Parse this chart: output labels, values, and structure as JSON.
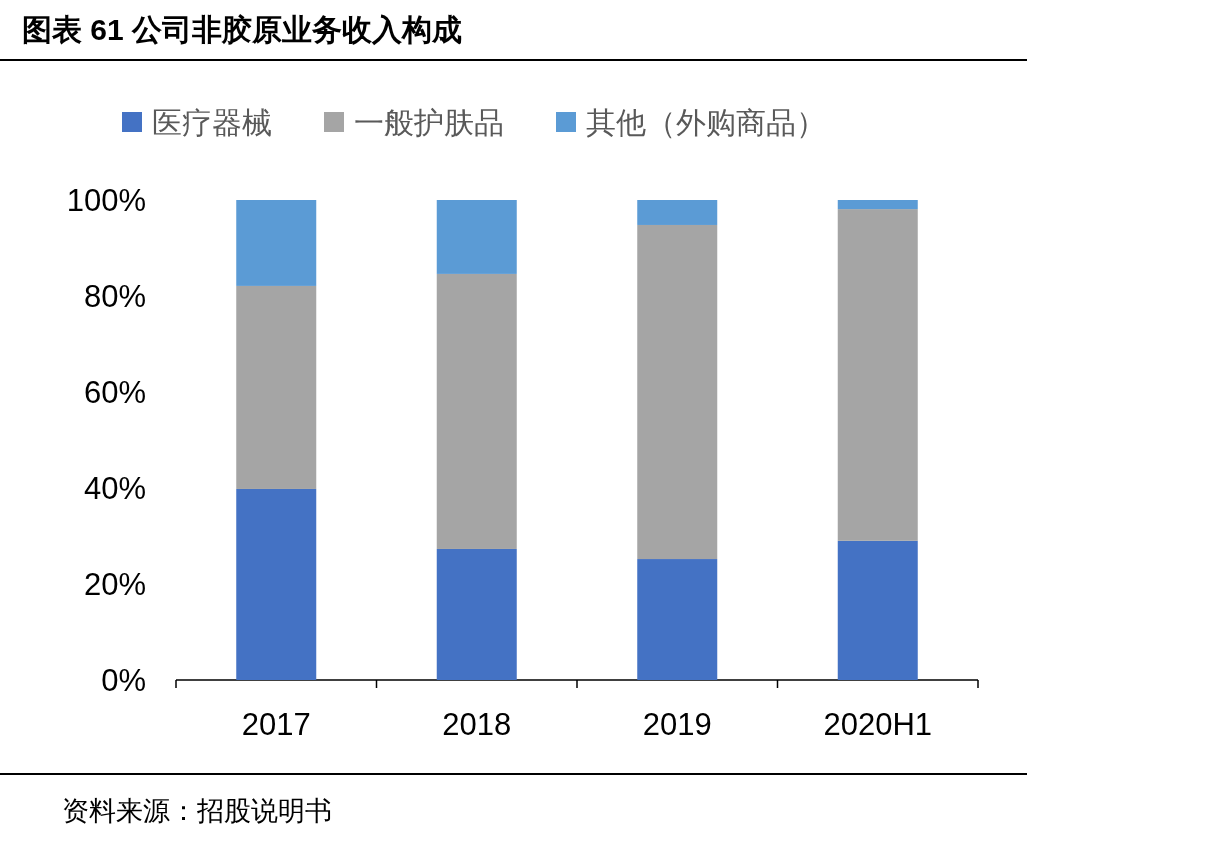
{
  "chart_data": {
    "type": "bar",
    "title": "图表 61  公司非胶原业务收入构成",
    "categories": [
      "2017",
      "2018",
      "2019",
      "2020H1"
    ],
    "stacked": true,
    "series": [
      {
        "name": "医疗器械",
        "color": "#4472c4",
        "values": [
          39.8,
          27.3,
          25.2,
          29.0
        ]
      },
      {
        "name": "一般护肤品",
        "color": "#a5a5a5",
        "values": [
          42.3,
          57.3,
          69.6,
          69.1
        ]
      },
      {
        "name": "其他（外购商品）",
        "color": "#5b9bd5",
        "values": [
          17.9,
          15.4,
          5.2,
          1.9
        ]
      }
    ],
    "ylim": [
      0,
      100
    ],
    "yticks": [
      {
        "value": 0,
        "label": "0%"
      },
      {
        "value": 20,
        "label": "20%"
      },
      {
        "value": 40,
        "label": "40%"
      },
      {
        "value": 60,
        "label": "60%"
      },
      {
        "value": 80,
        "label": "80%"
      },
      {
        "value": 100,
        "label": "100%"
      }
    ],
    "legend": "top",
    "grid": false,
    "annotations": [
      "资料来源：招股说明书"
    ]
  }
}
